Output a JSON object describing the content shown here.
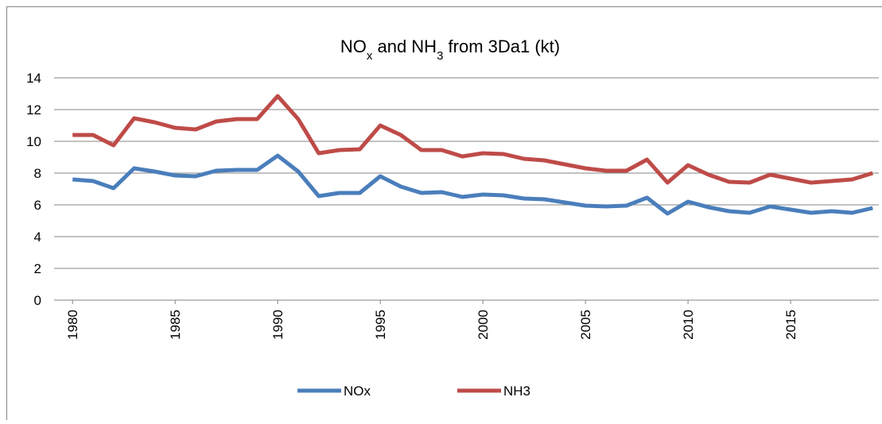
{
  "chart_data": {
    "type": "line",
    "title": [
      {
        "text": "NO"
      },
      {
        "text": "x",
        "subscript": true
      },
      {
        "text": " and NH"
      },
      {
        "text": "3",
        "subscript": true
      },
      {
        "text": " from 3Da1 (kt)"
      }
    ],
    "x": [
      1980,
      1981,
      1982,
      1983,
      1984,
      1985,
      1986,
      1987,
      1988,
      1989,
      1990,
      1991,
      1992,
      1993,
      1994,
      1995,
      1996,
      1997,
      1998,
      1999,
      2000,
      2001,
      2002,
      2003,
      2004,
      2005,
      2006,
      2007,
      2008,
      2009,
      2010,
      2011,
      2012,
      2013,
      2014,
      2015,
      2016,
      2017,
      2018,
      2019
    ],
    "series": [
      {
        "name": "NOx",
        "color": "#4a7ebb",
        "values": [
          7.6,
          7.5,
          7.05,
          8.3,
          8.1,
          7.85,
          7.8,
          8.15,
          8.2,
          8.2,
          9.1,
          8.1,
          6.55,
          6.75,
          6.75,
          7.8,
          7.15,
          6.75,
          6.8,
          6.5,
          6.65,
          6.6,
          6.4,
          6.35,
          6.15,
          5.95,
          5.9,
          5.95,
          6.45,
          5.45,
          6.2,
          5.85,
          5.6,
          5.5,
          5.9,
          5.7,
          5.5,
          5.6,
          5.5,
          5.8
        ]
      },
      {
        "name": "NH3",
        "color": "#be4b48",
        "values": [
          10.4,
          10.4,
          9.75,
          11.45,
          11.2,
          10.85,
          10.75,
          11.25,
          11.4,
          11.4,
          12.85,
          11.4,
          9.25,
          9.45,
          9.5,
          11.0,
          10.4,
          9.45,
          9.45,
          9.05,
          9.25,
          9.2,
          8.9,
          8.8,
          8.55,
          8.3,
          8.15,
          8.15,
          8.85,
          7.4,
          8.5,
          7.9,
          7.45,
          7.4,
          7.9,
          7.65,
          7.4,
          7.5,
          7.6,
          8.0
        ]
      }
    ],
    "xlim": [
      1979.1,
      2019.3
    ],
    "xticks": [
      1980,
      1985,
      1990,
      1995,
      2000,
      2005,
      2010,
      2015
    ],
    "ylim": [
      0,
      14
    ],
    "yticks": [
      0,
      2,
      4,
      6,
      8,
      10,
      12,
      14
    ],
    "grid": true,
    "legend": "bottom"
  }
}
